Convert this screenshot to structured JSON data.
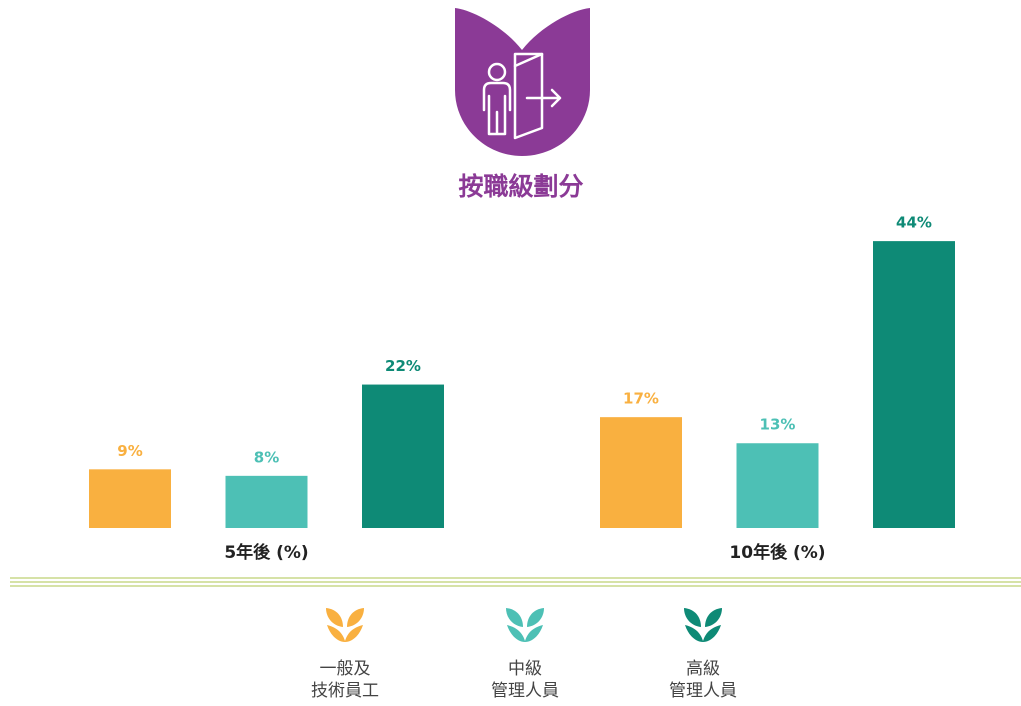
{
  "chart_data": {
    "type": "bar",
    "title": "按職級劃分",
    "categories": [
      "5年後 (%)",
      "10年後 (%)"
    ],
    "series": [
      {
        "name": "一般及\n技術員工",
        "color": "#f9b040",
        "values": [
          9,
          17
        ],
        "value_labels": [
          "9%",
          "17%"
        ]
      },
      {
        "name": "中級\n管理人員",
        "color": "#4dc0b5",
        "values": [
          8,
          13
        ],
        "value_labels": [
          "8%",
          "13%"
        ]
      },
      {
        "name": "高級\n管理人員",
        "color": "#0e8a76",
        "values": [
          22,
          44
        ],
        "value_labels": [
          "22%",
          "44%"
        ]
      }
    ]
  }
}
